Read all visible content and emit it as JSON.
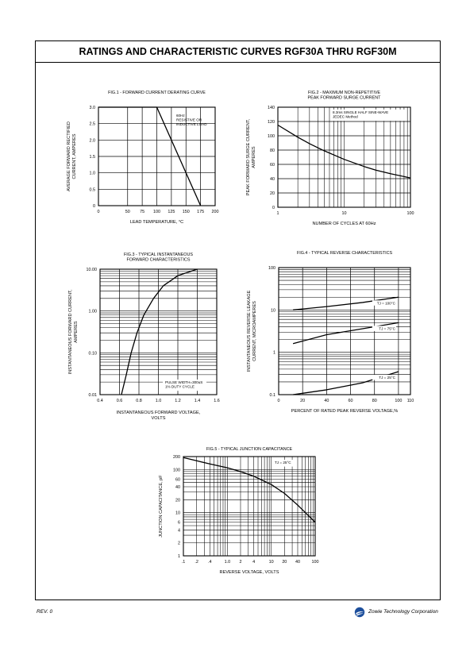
{
  "page": {
    "title": "RATINGS AND CHARACTERISTIC CURVES RGF30A THRU RGF30M",
    "revision": "REV. 0",
    "company": "Zowie Technology Corporation",
    "logo_icon": "zowie-swoosh-logo"
  },
  "chart_data": [
    {
      "id": "fig1",
      "type": "line",
      "title": "FIG.1 - FORWARD CURRENT DERATING CURVE",
      "xlabel": "LEAD TEMPERATURE, °C",
      "ylabel": [
        "AVERAGE FORWARD RECTIFIED",
        "CURRENT, AMPERES"
      ],
      "xscale": "linear",
      "yscale": "linear",
      "xlim": [
        0,
        200
      ],
      "ylim": [
        0,
        3.0
      ],
      "xticks": [
        0,
        50,
        75,
        100,
        125,
        150,
        175,
        200
      ],
      "xticklabels": [
        "0",
        "50",
        "75",
        "100",
        "125",
        "150",
        "175",
        "200"
      ],
      "yticks": [
        0,
        0.5,
        1.0,
        1.5,
        2.0,
        2.5,
        3.0
      ],
      "yticklabels": [
        "0",
        "0.5",
        "1.0",
        "1.5",
        "2.0",
        "2.5",
        "3.0"
      ],
      "grid": true,
      "annotations": [
        "60Hz",
        "RESISTIVE OR",
        "INDUCTIVE LOAD"
      ],
      "series": [
        {
          "x": [
            0,
            100,
            175
          ],
          "y": [
            3.0,
            3.0,
            0
          ]
        }
      ]
    },
    {
      "id": "fig2",
      "type": "line",
      "title": [
        "FIG.2 - MAXIMUM NON-REPETITIVE",
        "PEAK FORWARD SURGE CURRENT"
      ],
      "xlabel": "NUMBER OF CYCLES AT 60Hz",
      "ylabel": [
        "PEAK FORWARD SURGE CURRENT,",
        "AMPERES"
      ],
      "xscale": "log",
      "yscale": "linear",
      "xlim": [
        1,
        100
      ],
      "ylim": [
        0,
        140
      ],
      "xticks": [
        1,
        10,
        100
      ],
      "xticklabels": [
        "1",
        "10",
        "100"
      ],
      "yticks": [
        0,
        20,
        40,
        60,
        80,
        100,
        120,
        140
      ],
      "yticklabels": [
        "0",
        "20",
        "40",
        "60",
        "80",
        "100",
        "120",
        "140"
      ],
      "grid": true,
      "annotations": [
        "8.3ms SINGLE HALF SINE-WAVE",
        "JEDEC Method"
      ],
      "series": [
        {
          "x": [
            1,
            2,
            3,
            5,
            10,
            20,
            30,
            50,
            100
          ],
          "y": [
            115,
            98,
            89,
            79,
            67,
            57,
            52,
            47,
            41
          ]
        }
      ]
    },
    {
      "id": "fig3",
      "type": "line",
      "title": [
        "FIG.3 - TYPICAL INSTANTANEOUS",
        "FORWARD CHARACTERISTICS"
      ],
      "xlabel": [
        "INSTANTANEOUS FORWARD VOLTAGE,",
        "VOLTS"
      ],
      "ylabel": [
        "INSTANTANEOUS FORWARD CURRENT,",
        "AMPERES"
      ],
      "xscale": "linear",
      "yscale": "log",
      "xlim": [
        0.4,
        1.6
      ],
      "ylim": [
        0.01,
        10
      ],
      "xticks": [
        0.4,
        0.6,
        0.8,
        1.0,
        1.2,
        1.4,
        1.6
      ],
      "xticklabels": [
        "0.4",
        "0.6",
        "0.8",
        "1.0",
        "1.2",
        "1.4",
        "1.6"
      ],
      "yticks": [
        0.01,
        0.1,
        1,
        10
      ],
      "yticklabels": [
        "0.01",
        "0.10",
        "1.00",
        "10.00"
      ],
      "grid": true,
      "annotations": [
        "PULSE WIDTH=300uS",
        "1% DUTY CYCLE"
      ],
      "series": [
        {
          "x": [
            0.62,
            0.67,
            0.72,
            0.78,
            0.85,
            0.95,
            1.05,
            1.2,
            1.4
          ],
          "y": [
            0.01,
            0.03,
            0.1,
            0.3,
            0.8,
            2,
            4,
            7,
            10
          ]
        }
      ]
    },
    {
      "id": "fig4",
      "type": "line",
      "title": "FIG.4 - TYPICAL REVERSE CHARACTERISTICS",
      "xlabel": "PERCENT OF RATED PEAK REVERSE VOLTAGE,%",
      "ylabel": [
        "INSTANTANEOUS REVERSE LEAKAGE",
        "CURRENT, MICROAMPERES"
      ],
      "xscale": "linear",
      "yscale": "log",
      "xlim": [
        0,
        110
      ],
      "ylim": [
        0.1,
        100
      ],
      "xticks": [
        0,
        20,
        40,
        60,
        80,
        100,
        110
      ],
      "xticklabels": [
        "0",
        "20",
        "40",
        "60",
        "80",
        "100",
        "110"
      ],
      "yticks": [
        0.1,
        1,
        10,
        100
      ],
      "yticklabels": [
        "0.1",
        "1",
        "10",
        "100"
      ],
      "grid": true,
      "series": [
        {
          "name": "TJ = 100°C",
          "x": [
            12,
            40,
            70,
            100
          ],
          "y": [
            10,
            12,
            15,
            20
          ]
        },
        {
          "name": "TJ = 75°C",
          "x": [
            12,
            40,
            70,
            100
          ],
          "y": [
            1.6,
            2.6,
            3.6,
            5.0
          ]
        },
        {
          "name": "TJ = 25°C",
          "x": [
            12,
            40,
            70,
            100
          ],
          "y": [
            0.1,
            0.13,
            0.19,
            0.35
          ]
        }
      ]
    },
    {
      "id": "fig5",
      "type": "line",
      "title": "FIG.5 - TYPICAL JUNCTION CAPACITANCE",
      "xlabel": "REVERSE VOLTAGE, VOLTS",
      "ylabel": "JUNCTION CAPACITANCE, pF",
      "xscale": "log",
      "yscale": "log",
      "xlim": [
        0.1,
        100
      ],
      "ylim": [
        1,
        200
      ],
      "xticks": [
        0.1,
        0.2,
        0.4,
        1,
        2,
        4,
        10,
        20,
        40,
        100
      ],
      "xticklabels": [
        ".1",
        ".2",
        ".4",
        "1.0",
        "2",
        "4",
        "10",
        "20",
        "40",
        "100"
      ],
      "yticks": [
        1,
        2,
        4,
        6,
        10,
        20,
        40,
        60,
        100,
        200
      ],
      "yticklabels": [
        "1",
        "2",
        "4",
        "6",
        "10",
        "20",
        "40",
        "60",
        "100",
        "200"
      ],
      "grid": true,
      "annotations": [
        "TJ = 25°C"
      ],
      "series": [
        {
          "x": [
            0.1,
            0.2,
            0.4,
            1,
            2,
            4,
            10,
            20,
            40,
            100
          ],
          "y": [
            190,
            160,
            135,
            110,
            90,
            70,
            45,
            28,
            15,
            6
          ]
        }
      ]
    }
  ]
}
